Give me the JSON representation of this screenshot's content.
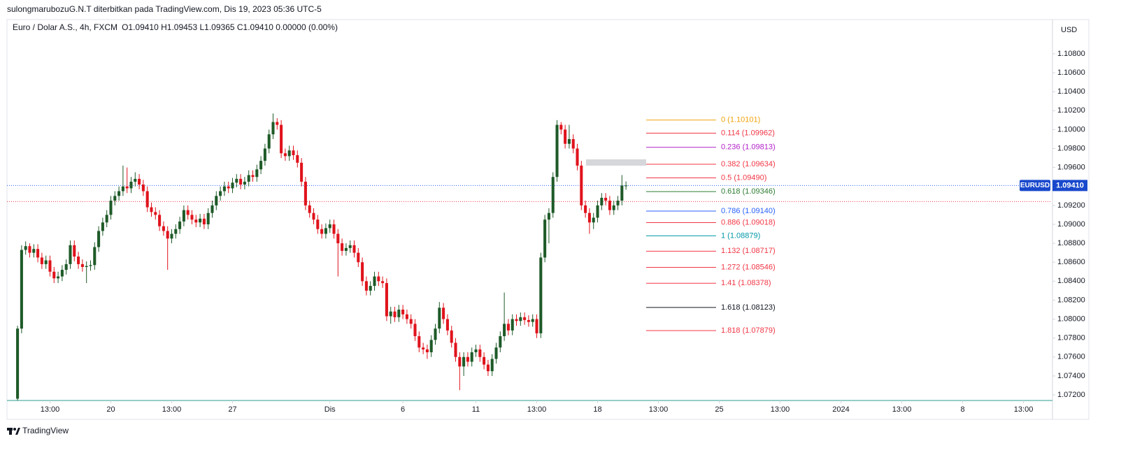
{
  "attribution": "sulongmarubozuG.N.T diterbitkan pada TradingView.com, Dis 19, 2023 05:36 UTC-5",
  "footer": "TradingView",
  "chart_data": {
    "type": "candlestick",
    "title": "Euro / Dolar A.S., 4h, FXCM",
    "legend": "O1.09410 H1.09453 L1.09365 C1.09410 0.00000 (0.00%)",
    "currency": "USD",
    "symbol": "EURUSD",
    "last_price": {
      "value": 1.0941,
      "label": "1.09410"
    },
    "reference_line": {
      "value": 1.0924,
      "color": "#f23645"
    },
    "colors": {
      "up": "#1e5a28",
      "down": "#e0131c",
      "last": "#2962ff",
      "tag": "#1848cc"
    },
    "ohlc": [
      [
        1.0716,
        1.0793,
        1.0714,
        1.079
      ],
      [
        1.079,
        1.0878,
        1.0785,
        1.0873
      ],
      [
        1.0873,
        1.0882,
        1.0868,
        1.0877
      ],
      [
        1.0877,
        1.088,
        1.0865,
        1.087
      ],
      [
        1.087,
        1.0879,
        1.0865,
        1.0874
      ],
      [
        1.0874,
        1.0879,
        1.086,
        1.0865
      ],
      [
        1.0865,
        1.087,
        1.0853,
        1.0858
      ],
      [
        1.0858,
        1.0867,
        1.0853,
        1.0862
      ],
      [
        1.0862,
        1.0867,
        1.0845,
        1.085
      ],
      [
        1.085,
        1.0855,
        1.0838,
        1.0843
      ],
      [
        1.0843,
        1.085,
        1.0838,
        1.0845
      ],
      [
        1.0845,
        1.0857,
        1.084,
        1.0852
      ],
      [
        1.0852,
        1.0863,
        1.0847,
        1.0858
      ],
      [
        1.0858,
        1.0883,
        1.0853,
        1.0878
      ],
      [
        1.0878,
        1.0883,
        1.0861,
        1.0866
      ],
      [
        1.0866,
        1.0871,
        1.0853,
        1.0858
      ],
      [
        1.0858,
        1.0863,
        1.085,
        1.0855
      ],
      [
        1.0855,
        1.0861,
        1.0838,
        1.0856
      ],
      [
        1.0856,
        1.0862,
        1.0851,
        1.0857
      ],
      [
        1.0857,
        1.0881,
        1.0852,
        1.0876
      ],
      [
        1.0876,
        1.0898,
        1.0871,
        1.0893
      ],
      [
        1.0893,
        1.0907,
        1.0888,
        1.0902
      ],
      [
        1.0902,
        1.0915,
        1.0897,
        1.091
      ],
      [
        1.091,
        1.093,
        1.0905,
        1.0925
      ],
      [
        1.0925,
        1.0935,
        1.092,
        1.093
      ],
      [
        1.093,
        1.094,
        1.0925,
        1.0935
      ],
      [
        1.0935,
        1.0962,
        1.093,
        1.094
      ],
      [
        1.094,
        1.096,
        1.0933,
        1.0938
      ],
      [
        1.0938,
        1.095,
        1.0933,
        1.0945
      ],
      [
        1.0945,
        1.0955,
        1.094,
        1.0948
      ],
      [
        1.0948,
        1.0953,
        1.0937,
        1.0942
      ],
      [
        1.0942,
        1.0947,
        1.093,
        1.0935
      ],
      [
        1.0935,
        1.094,
        1.0913,
        1.0918
      ],
      [
        1.0918,
        1.0923,
        1.0908,
        1.0913
      ],
      [
        1.0913,
        1.0918,
        1.0905,
        1.091
      ],
      [
        1.091,
        1.0915,
        1.0893,
        1.0898
      ],
      [
        1.0898,
        1.0903,
        1.0888,
        1.0893
      ],
      [
        1.0893,
        1.0898,
        1.0852,
        1.0885
      ],
      [
        1.0885,
        1.0895,
        1.088,
        1.089
      ],
      [
        1.089,
        1.09,
        1.0885,
        1.0895
      ],
      [
        1.0895,
        1.0908,
        1.089,
        1.0903
      ],
      [
        1.0903,
        1.092,
        1.0898,
        1.0915
      ],
      [
        1.0915,
        1.092,
        1.0905,
        1.091
      ],
      [
        1.091,
        1.0915,
        1.09,
        1.0905
      ],
      [
        1.0905,
        1.091,
        1.0897,
        1.0902
      ],
      [
        1.0902,
        1.0911,
        1.0897,
        1.0906
      ],
      [
        1.0906,
        1.0911,
        1.0895,
        1.09
      ],
      [
        1.09,
        1.0917,
        1.0895,
        1.0912
      ],
      [
        1.0912,
        1.0925,
        1.0907,
        1.092
      ],
      [
        1.092,
        1.0935,
        1.0915,
        1.093
      ],
      [
        1.093,
        1.094,
        1.0925,
        1.0935
      ],
      [
        1.0935,
        1.0945,
        1.093,
        1.094
      ],
      [
        1.094,
        1.0945,
        1.0933,
        1.0938
      ],
      [
        1.0938,
        1.0949,
        1.0933,
        1.0944
      ],
      [
        1.0944,
        1.0953,
        1.0939,
        1.0948
      ],
      [
        1.0948,
        1.0953,
        1.0937,
        1.0942
      ],
      [
        1.0942,
        1.095,
        1.0937,
        1.0945
      ],
      [
        1.0945,
        1.0957,
        1.094,
        1.0952
      ],
      [
        1.0952,
        1.0957,
        1.0945,
        1.095
      ],
      [
        1.095,
        1.0963,
        1.0945,
        1.0958
      ],
      [
        1.0958,
        1.0972,
        1.0953,
        1.0967
      ],
      [
        1.0967,
        1.0985,
        1.0962,
        1.098
      ],
      [
        1.098,
        1.1,
        1.0975,
        1.0995
      ],
      [
        1.0995,
        1.1017,
        1.099,
        1.1008
      ],
      [
        1.1008,
        1.1012,
        1.1,
        1.1005
      ],
      [
        1.1005,
        1.101,
        1.097,
        1.0975
      ],
      [
        1.0975,
        1.098,
        1.0967,
        1.0972
      ],
      [
        1.0972,
        1.0983,
        1.0967,
        1.0978
      ],
      [
        1.0978,
        1.0983,
        1.0968,
        1.0973
      ],
      [
        1.0973,
        1.0978,
        1.096,
        1.0965
      ],
      [
        1.0965,
        1.097,
        1.094,
        1.0945
      ],
      [
        1.0945,
        1.095,
        1.0915,
        1.092
      ],
      [
        1.092,
        1.0925,
        1.0907,
        1.0912
      ],
      [
        1.0912,
        1.0917,
        1.09,
        1.0905
      ],
      [
        1.0905,
        1.091,
        1.089,
        1.0895
      ],
      [
        1.0895,
        1.09,
        1.0885,
        1.089
      ],
      [
        1.089,
        1.0901,
        1.0885,
        1.0896
      ],
      [
        1.0896,
        1.0905,
        1.0891,
        1.09
      ],
      [
        1.09,
        1.0905,
        1.0885,
        1.089
      ],
      [
        1.089,
        1.0895,
        1.0845,
        1.088
      ],
      [
        1.088,
        1.0885,
        1.0867,
        1.0872
      ],
      [
        1.0872,
        1.088,
        1.0867,
        1.0875
      ],
      [
        1.0875,
        1.0883,
        1.087,
        1.0878
      ],
      [
        1.0878,
        1.0883,
        1.0865,
        1.087
      ],
      [
        1.087,
        1.0875,
        1.0855,
        1.086
      ],
      [
        1.086,
        1.0865,
        1.0835,
        1.084
      ],
      [
        1.084,
        1.0845,
        1.0825,
        1.083
      ],
      [
        1.083,
        1.084,
        1.0825,
        1.0835
      ],
      [
        1.0835,
        1.085,
        1.083,
        1.0845
      ],
      [
        1.0845,
        1.085,
        1.0835,
        1.084
      ],
      [
        1.084,
        1.0845,
        1.0833,
        1.0838
      ],
      [
        1.0838,
        1.0843,
        1.0798,
        1.0803
      ],
      [
        1.0803,
        1.0813,
        1.0795,
        1.0808
      ],
      [
        1.0808,
        1.0813,
        1.0797,
        1.0802
      ],
      [
        1.0802,
        1.0815,
        1.0797,
        1.081
      ],
      [
        1.081,
        1.0815,
        1.08,
        1.0805
      ],
      [
        1.0805,
        1.081,
        1.0795,
        1.08
      ],
      [
        1.08,
        1.0805,
        1.079,
        1.0795
      ],
      [
        1.0795,
        1.08,
        1.0777,
        1.0782
      ],
      [
        1.0782,
        1.0787,
        1.0765,
        1.077
      ],
      [
        1.077,
        1.0775,
        1.0763,
        1.0768
      ],
      [
        1.0768,
        1.0773,
        1.0758,
        1.0765
      ],
      [
        1.0765,
        1.0783,
        1.076,
        1.0778
      ],
      [
        1.0778,
        1.0795,
        1.0773,
        1.079
      ],
      [
        1.079,
        1.0818,
        1.0785,
        1.0812
      ],
      [
        1.0812,
        1.0817,
        1.0795,
        1.08
      ],
      [
        1.08,
        1.0805,
        1.0783,
        1.0788
      ],
      [
        1.0788,
        1.0793,
        1.077,
        1.0775
      ],
      [
        1.0775,
        1.078,
        1.0755,
        1.076
      ],
      [
        1.076,
        1.0765,
        1.0725,
        1.075
      ],
      [
        1.075,
        1.0765,
        1.074,
        1.076
      ],
      [
        1.076,
        1.0765,
        1.075,
        1.0755
      ],
      [
        1.0755,
        1.077,
        1.075,
        1.0765
      ],
      [
        1.0765,
        1.0773,
        1.076,
        1.0768
      ],
      [
        1.0768,
        1.0773,
        1.0755,
        1.076
      ],
      [
        1.076,
        1.0765,
        1.0747,
        1.0752
      ],
      [
        1.0752,
        1.0757,
        1.074,
        1.0745
      ],
      [
        1.0745,
        1.0763,
        1.074,
        1.0758
      ],
      [
        1.0758,
        1.0775,
        1.0753,
        1.077
      ],
      [
        1.077,
        1.0787,
        1.0765,
        1.0782
      ],
      [
        1.0782,
        1.0828,
        1.0777,
        1.0795
      ],
      [
        1.0795,
        1.08,
        1.0783,
        1.0788
      ],
      [
        1.0788,
        1.0805,
        1.0783,
        1.08
      ],
      [
        1.08,
        1.0805,
        1.0793,
        1.0798
      ],
      [
        1.0798,
        1.0807,
        1.0793,
        1.0802
      ],
      [
        1.0802,
        1.0807,
        1.0794,
        1.0799
      ],
      [
        1.0799,
        1.0804,
        1.0792,
        1.0797
      ],
      [
        1.0797,
        1.0805,
        1.0792,
        1.08
      ],
      [
        1.08,
        1.0805,
        1.078,
        1.0785
      ],
      [
        1.0785,
        1.087,
        1.078,
        1.0865
      ],
      [
        1.0865,
        1.091,
        1.086,
        1.0905
      ],
      [
        1.0905,
        1.0917,
        1.088,
        1.0912
      ],
      [
        1.0912,
        1.0955,
        1.0907,
        1.095
      ],
      [
        1.095,
        1.101,
        1.0945,
        1.1005
      ],
      [
        1.1005,
        1.1008,
        1.0995,
        1.1
      ],
      [
        1.1,
        1.1005,
        1.098,
        1.0985
      ],
      [
        1.0985,
        1.1005,
        1.098,
        1.099
      ],
      [
        1.099,
        1.0995,
        1.0975,
        1.098
      ],
      [
        1.098,
        1.0985,
        1.0957,
        1.0962
      ],
      [
        1.0962,
        1.0967,
        1.0915,
        1.092
      ],
      [
        1.092,
        1.0925,
        1.0907,
        1.0912
      ],
      [
        1.0912,
        1.0917,
        1.089,
        1.0902
      ],
      [
        1.0902,
        1.0912,
        1.0895,
        1.0907
      ],
      [
        1.0907,
        1.0925,
        1.0902,
        1.092
      ],
      [
        1.092,
        1.0933,
        1.0915,
        1.0928
      ],
      [
        1.0928,
        1.0933,
        1.092,
        1.0925
      ],
      [
        1.0925,
        1.093,
        1.091,
        1.0915
      ],
      [
        1.0915,
        1.0925,
        1.091,
        1.092
      ],
      [
        1.092,
        1.093,
        1.0915,
        1.0925
      ],
      [
        1.0925,
        1.0952,
        1.092,
        1.0941
      ],
      [
        1.0941,
        1.09453,
        1.09365,
        1.0941
      ]
    ],
    "xlim": [
      -2.6,
      254.8
    ],
    "xticks": [
      {
        "value": 8,
        "label": "13:00"
      },
      {
        "value": 23,
        "label": "20"
      },
      {
        "value": 38,
        "label": "13:00"
      },
      {
        "value": 53,
        "label": "27"
      },
      {
        "value": 77,
        "label": "Dis"
      },
      {
        "value": 95,
        "label": "6"
      },
      {
        "value": 113,
        "label": "11"
      },
      {
        "value": 128,
        "label": "13:00"
      },
      {
        "value": 143,
        "label": "18"
      },
      {
        "value": 158,
        "label": "13:00"
      },
      {
        "value": 173,
        "label": "25"
      },
      {
        "value": 188,
        "label": "13:00"
      },
      {
        "value": 203,
        "label": "2024"
      },
      {
        "value": 218,
        "label": "13:00"
      },
      {
        "value": 233,
        "label": "8"
      },
      {
        "value": 248,
        "label": "13:00"
      }
    ],
    "ylim": [
      1.07141,
      1.11161
    ],
    "yticks": [
      {
        "value": 1.072,
        "label": "1.07200"
      },
      {
        "value": 1.074,
        "label": "1.07400"
      },
      {
        "value": 1.076,
        "label": "1.07600"
      },
      {
        "value": 1.078,
        "label": "1.07800"
      },
      {
        "value": 1.08,
        "label": "1.08000"
      },
      {
        "value": 1.082,
        "label": "1.08200"
      },
      {
        "value": 1.084,
        "label": "1.08400"
      },
      {
        "value": 1.086,
        "label": "1.08600"
      },
      {
        "value": 1.088,
        "label": "1.08800"
      },
      {
        "value": 1.09,
        "label": "1.09000"
      },
      {
        "value": 1.092,
        "label": "1.09200"
      },
      {
        "value": 1.094,
        "label": "1.09400"
      },
      {
        "value": 1.096,
        "label": "1.09600"
      },
      {
        "value": 1.098,
        "label": "1.09800"
      },
      {
        "value": 1.1,
        "label": "1.10000"
      },
      {
        "value": 1.102,
        "label": "1.10200"
      },
      {
        "value": 1.104,
        "label": "1.10400"
      },
      {
        "value": 1.106,
        "label": "1.10600"
      },
      {
        "value": 1.108,
        "label": "1.10800"
      }
    ],
    "fib_levels": [
      {
        "price": 1.10101,
        "label": "0 (1.10101)",
        "color": "#f0a30a"
      },
      {
        "price": 1.09962,
        "label": "0.114 (1.09962)",
        "color": "#f23645"
      },
      {
        "price": 1.09813,
        "label": "0.236 (1.09813)",
        "color": "#b322c9"
      },
      {
        "price": 1.09634,
        "label": "0.382 (1.09634)",
        "color": "#f23645"
      },
      {
        "price": 1.0949,
        "label": "0.5 (1.09490)",
        "color": "#f23645"
      },
      {
        "price": 1.09346,
        "label": "0.618 (1.09346)",
        "color": "#2e7d32"
      },
      {
        "price": 1.0914,
        "label": "0.786 (1.09140)",
        "color": "#2962ff"
      },
      {
        "price": 1.09018,
        "label": "0.886 (1.09018)",
        "color": "#f23645"
      },
      {
        "price": 1.08879,
        "label": "1 (1.08879)",
        "color": "#0097a7"
      },
      {
        "price": 1.08717,
        "label": "1.132 (1.08717)",
        "color": "#f23645"
      },
      {
        "price": 1.08546,
        "label": "1.272 (1.08546)",
        "color": "#f23645"
      },
      {
        "price": 1.08378,
        "label": "1.41 (1.08378)",
        "color": "#f23645"
      },
      {
        "price": 1.08123,
        "label": "1.618 (1.08123)",
        "color": "#131722"
      },
      {
        "price": 1.07879,
        "label": "1.818 (1.07879)",
        "color": "#f23645"
      }
    ]
  }
}
